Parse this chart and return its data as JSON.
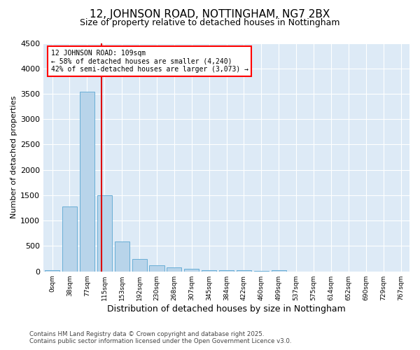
{
  "title_line1": "12, JOHNSON ROAD, NOTTINGHAM, NG7 2BX",
  "title_line2": "Size of property relative to detached houses in Nottingham",
  "xlabel": "Distribution of detached houses by size in Nottingham",
  "ylabel": "Number of detached properties",
  "bar_labels": [
    "0sqm",
    "38sqm",
    "77sqm",
    "115sqm",
    "153sqm",
    "192sqm",
    "230sqm",
    "268sqm",
    "307sqm",
    "345sqm",
    "384sqm",
    "422sqm",
    "460sqm",
    "499sqm",
    "537sqm",
    "575sqm",
    "614sqm",
    "652sqm",
    "690sqm",
    "729sqm",
    "767sqm"
  ],
  "bar_values": [
    30,
    1280,
    3540,
    1500,
    590,
    240,
    120,
    80,
    50,
    30,
    20,
    30,
    5,
    30,
    0,
    0,
    0,
    0,
    0,
    0,
    0
  ],
  "bar_color": "#b8d4ea",
  "bar_edgecolor": "#6aaed6",
  "ylim": [
    0,
    4500
  ],
  "yticks": [
    0,
    500,
    1000,
    1500,
    2000,
    2500,
    3000,
    3500,
    4000,
    4500
  ],
  "vline_color": "#dd0000",
  "annotation_title": "12 JOHNSON ROAD: 109sqm",
  "annotation_line2": "← 58% of detached houses are smaller (4,240)",
  "annotation_line3": "42% of semi-detached houses are larger (3,073) →",
  "footer_line1": "Contains HM Land Registry data © Crown copyright and database right 2025.",
  "footer_line2": "Contains public sector information licensed under the Open Government Licence v3.0.",
  "plot_bg_color": "#ddeaf6",
  "fig_bg_color": "#ffffff"
}
